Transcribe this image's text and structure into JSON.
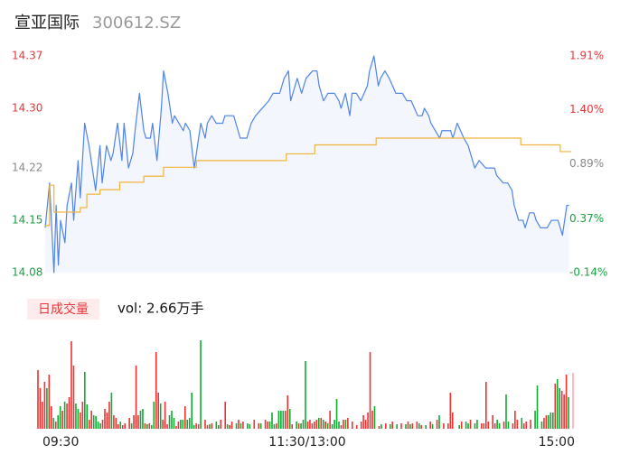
{
  "chart_data": [
    {
      "type": "line",
      "title": "宣亚国际",
      "subtitle": "300612.SZ",
      "xlim": [
        0,
        240
      ],
      "ylim": [
        14.08,
        14.37
      ],
      "yticks": [
        14.37,
        {
          "value": 14.3,
          "label": "14.30"
        },
        14.22,
        14.15,
        14.08
      ],
      "ytick_colors": [
        "#e8363b",
        "#e8363b",
        "#888888",
        "#1aa042",
        "#1aa042"
      ],
      "y2lim": [
        -0.14,
        1.91
      ],
      "y2ticks": [
        {
          "value": 1.91,
          "label": "1.91%"
        },
        {
          "value": 1.4,
          "label": "1.40%"
        },
        {
          "value": 0.89,
          "label": "0.89%"
        },
        {
          "value": 0.37,
          "label": "0.37%"
        },
        {
          "value": -0.14,
          "label": "-0.14%"
        }
      ],
      "y2tick_colors": [
        "#e8363b",
        "#e8363b",
        "#888888",
        "#1aa042",
        "#1aa042"
      ],
      "area_color": "#f3f6fc",
      "series": [
        {
          "color": "#4f84e8",
          "x": [
            0,
            2,
            4,
            5,
            6,
            7,
            9,
            10,
            12,
            13,
            15,
            16,
            18,
            20,
            21,
            23,
            25,
            26,
            28,
            30,
            31,
            33,
            35,
            36,
            38,
            40,
            41,
            43,
            45,
            46,
            48,
            49,
            51,
            53,
            54,
            56,
            58,
            59,
            61,
            63,
            64,
            66,
            68,
            69,
            71,
            73,
            74,
            76,
            78,
            81,
            82,
            86,
            87,
            89,
            92,
            94,
            96,
            99,
            102,
            104,
            107,
            109,
            111,
            112,
            114,
            115,
            117,
            119,
            122,
            124,
            125,
            127,
            129,
            132,
            134,
            135,
            137,
            139,
            140,
            142,
            144,
            147,
            148,
            150,
            152,
            153,
            155,
            157,
            160,
            163,
            165,
            167,
            170,
            172,
            173,
            175,
            176,
            180,
            181,
            185,
            186,
            188,
            191,
            193,
            195,
            196,
            198,
            201,
            205,
            206,
            209,
            211,
            213,
            214,
            216,
            218,
            219,
            221,
            223,
            224,
            226,
            229,
            231,
            233,
            234,
            236,
            238,
            239
          ],
          "values": [
            14.14,
            14.2,
            14.08,
            14.17,
            14.09,
            14.15,
            14.12,
            14.17,
            14.2,
            14.15,
            14.23,
            14.18,
            14.28,
            14.25,
            14.23,
            14.19,
            14.25,
            14.2,
            14.25,
            14.23,
            14.24,
            14.28,
            14.23,
            14.28,
            14.22,
            14.24,
            14.27,
            14.32,
            14.27,
            14.26,
            14.26,
            14.28,
            14.23,
            14.3,
            14.35,
            14.32,
            14.28,
            14.29,
            14.28,
            14.27,
            14.28,
            14.27,
            14.22,
            14.24,
            14.28,
            14.26,
            14.28,
            14.29,
            14.28,
            14.28,
            14.29,
            14.29,
            14.28,
            14.26,
            14.26,
            14.28,
            14.29,
            14.3,
            14.31,
            14.32,
            14.32,
            14.34,
            14.35,
            14.31,
            14.33,
            14.34,
            14.32,
            14.34,
            14.35,
            14.35,
            14.33,
            14.31,
            14.32,
            14.32,
            14.31,
            14.3,
            14.32,
            14.29,
            14.32,
            14.32,
            14.31,
            14.33,
            14.35,
            14.37,
            14.33,
            14.34,
            14.35,
            14.34,
            14.32,
            14.32,
            14.31,
            14.31,
            14.29,
            14.29,
            14.3,
            14.29,
            14.28,
            14.26,
            14.27,
            14.27,
            14.26,
            14.28,
            14.26,
            14.25,
            14.23,
            14.22,
            14.23,
            14.22,
            14.22,
            14.21,
            14.2,
            14.2,
            14.19,
            14.17,
            14.15,
            14.15,
            14.14,
            14.16,
            14.16,
            14.15,
            14.14,
            14.14,
            14.15,
            14.15,
            14.15,
            14.13,
            14.17,
            14.17
          ],
          "area": true
        },
        {
          "color": "#f2b33d",
          "step": true,
          "x": [
            0,
            2,
            4,
            16,
            19,
            25,
            34,
            45,
            54,
            69,
            110,
            123,
            151,
            217,
            235,
            240
          ],
          "values": [
            14.143,
            14.197,
            14.161,
            14.167,
            14.185,
            14.191,
            14.201,
            14.209,
            14.221,
            14.23,
            14.239,
            14.251,
            14.26,
            14.251,
            14.242,
            14.242
          ]
        }
      ]
    },
    {
      "type": "bar",
      "title": "日成交量",
      "annotation": "vol: 2.66万手",
      "xlim": [
        0,
        240
      ],
      "ylim": [
        0,
        100
      ],
      "xticks": [
        {
          "value": 0,
          "label": "09:30"
        },
        {
          "value": 120,
          "label": "11:30/13:00"
        },
        {
          "value": 240,
          "label": "15:00"
        }
      ],
      "x": [
        0,
        1,
        2,
        3,
        4,
        5,
        6,
        7,
        8,
        9,
        10,
        11,
        12,
        13,
        14,
        15,
        16,
        17,
        18,
        19,
        20,
        21,
        22,
        23,
        24,
        25,
        26,
        27,
        28,
        29,
        30,
        31,
        32,
        33,
        34,
        35,
        36,
        37,
        38,
        39,
        41,
        42,
        43,
        44,
        45,
        46,
        47,
        48,
        49,
        50,
        51,
        52,
        53,
        54,
        55,
        56,
        57,
        58,
        59,
        60,
        61,
        62,
        63,
        64,
        65,
        66,
        67,
        68,
        69,
        70,
        71,
        72,
        73,
        75,
        76,
        77,
        78,
        80,
        81,
        82,
        84,
        85,
        86,
        87,
        89,
        90,
        91,
        92,
        94,
        95,
        97,
        99,
        100,
        102,
        103,
        104,
        105,
        106,
        107,
        108,
        109,
        110,
        111,
        112,
        113,
        114,
        116,
        117,
        118,
        119,
        120,
        121,
        122,
        123,
        124,
        125,
        126,
        127,
        128,
        129,
        130,
        131,
        132,
        133,
        134,
        135,
        136,
        137,
        138,
        139,
        141,
        143,
        145,
        146,
        147,
        148,
        149,
        150,
        151,
        153,
        154,
        156,
        158,
        159,
        161,
        163,
        165,
        166,
        167,
        168,
        170,
        171,
        172,
        174,
        176,
        177,
        179,
        180,
        182,
        184,
        185,
        186,
        189,
        190,
        192,
        193,
        194,
        196,
        197,
        199,
        200,
        201,
        202,
        204,
        205,
        206,
        207,
        209,
        210,
        211,
        213,
        214,
        215,
        217,
        218,
        219,
        221,
        223,
        224,
        226,
        227,
        228,
        229,
        230,
        231,
        232,
        233,
        234,
        235,
        236,
        237,
        238,
        240
      ],
      "values": [
        65,
        45,
        30,
        52,
        45,
        60,
        25,
        12,
        8,
        15,
        25,
        20,
        30,
        28,
        35,
        97,
        70,
        28,
        22,
        18,
        30,
        63,
        27,
        10,
        20,
        15,
        14,
        8,
        6,
        10,
        22,
        18,
        30,
        40,
        15,
        12,
        5,
        8,
        4,
        6,
        12,
        6,
        15,
        70,
        15,
        20,
        22,
        6,
        5,
        6,
        4,
        30,
        85,
        40,
        28,
        10,
        30,
        5,
        15,
        20,
        12,
        3,
        8,
        10,
        10,
        25,
        10,
        12,
        40,
        4,
        6,
        5,
        98,
        10,
        4,
        5,
        6,
        8,
        4,
        10,
        30,
        5,
        4,
        8,
        6,
        10,
        6,
        8,
        6,
        5,
        10,
        6,
        6,
        10,
        8,
        8,
        18,
        5,
        6,
        20,
        20,
        20,
        20,
        37,
        22,
        5,
        8,
        6,
        6,
        10,
        75,
        8,
        10,
        6,
        8,
        10,
        12,
        12,
        10,
        8,
        6,
        20,
        5,
        10,
        33,
        8,
        4,
        10,
        10,
        12,
        8,
        4,
        8,
        15,
        10,
        18,
        85,
        20,
        25,
        3,
        5,
        6,
        5,
        8,
        5,
        6,
        5,
        8,
        5,
        6,
        8,
        6,
        4,
        4,
        8,
        5,
        10,
        15,
        6,
        6,
        40,
        18,
        4,
        8,
        8,
        6,
        10,
        6,
        10,
        6,
        6,
        52,
        8,
        15,
        6,
        10,
        6,
        8,
        38,
        8,
        6,
        20,
        10,
        12,
        6,
        8,
        10,
        20,
        48,
        8,
        12,
        15,
        15,
        18,
        18,
        50,
        55,
        45,
        42,
        38,
        60,
        35,
        62
      ],
      "colors": [
        "#e33",
        "#e33",
        "#e33",
        "#e33",
        "#1a3",
        "#e33",
        "#e33",
        "#1a3",
        "#e33",
        "#1a3",
        "#1a3",
        "#e33",
        "#1a3",
        "#e33",
        "#e33",
        "#e33",
        "#e33",
        "#1a3",
        "#1a3",
        "#e33",
        "#e33",
        "#1a3",
        "#1a3",
        "#e33",
        "#e33",
        "#1a3",
        "#1a3",
        "#1a3",
        "#1a3",
        "#e33",
        "#e33",
        "#e33",
        "#e33",
        "#1a3",
        "#e33",
        "#e33",
        "#e33",
        "#1a3",
        "#e33",
        "#e33",
        "#e33",
        "#1a3",
        "#e33",
        "#e33",
        "#e33",
        "#1a3",
        "#1a3",
        "#e33",
        "#1a3",
        "#e33",
        "#1a3",
        "#1a3",
        "#e33",
        "#e33",
        "#1a3",
        "#e33",
        "#e33",
        "#e33",
        "#1a3",
        "#1a3",
        "#1a3",
        "#e33",
        "#e33",
        "#1a3",
        "#1a3",
        "#e33",
        "#1a3",
        "#1a3",
        "#1a3",
        "#1a3",
        "#e33",
        "#e33",
        "#1a3",
        "#e33",
        "#e33",
        "#1a3",
        "#e33",
        "#1a3",
        "#1a3",
        "#e33",
        "#e33",
        "#1a3",
        "#e33",
        "#e33",
        "#1a3",
        "#e33",
        "#1a3",
        "#e33",
        "#1a3",
        "#1a3",
        "#e33",
        "#e33",
        "#1a3",
        "#e33",
        "#e33",
        "#1a3",
        "#1a3",
        "#1a3",
        "#e33",
        "#1a3",
        "#1a3",
        "#1a3",
        "#e33",
        "#e33",
        "#1a3",
        "#e33",
        "#1a3",
        "#e33",
        "#1a3",
        "#1a3",
        "#1a3",
        "#e33",
        "#e33",
        "#e33",
        "#e33",
        "#e33",
        "#1a3",
        "#e33",
        "#1a3",
        "#e33",
        "#1a3",
        "#e33",
        "#1a3",
        "#1a3",
        "#1a3",
        "#1a3",
        "#e33",
        "#e33",
        "#1a3",
        "#e33",
        "#e33",
        "#e33",
        "#e33",
        "#e33",
        "#e33",
        "#e33",
        "#e33",
        "#e33",
        "#1a3",
        "#e33",
        "#1a3",
        "#e33",
        "#1a3",
        "#e33",
        "#1a3",
        "#e33",
        "#1a3",
        "#e33",
        "#1a3",
        "#e33",
        "#e33",
        "#1a3",
        "#e33",
        "#1a3",
        "#e33",
        "#1a3",
        "#e33",
        "#1a3",
        "#e33",
        "#e33",
        "#e33",
        "#e33",
        "#1a3",
        "#e33",
        "#1a3",
        "#1a3",
        "#e33",
        "#1a3",
        "#1a3",
        "#e33",
        "#e33",
        "#e33",
        "#e33",
        "#e33",
        "#e33",
        "#1a3",
        "#1a3",
        "#e33",
        "#1a3",
        "#1a3",
        "#e33",
        "#e33",
        "#e33",
        "#1a3",
        "#e33",
        "#e33",
        "#e33",
        "#1a3",
        "#1a3",
        "#1a3",
        "#e33",
        "#e33",
        "#1a3",
        "#1a3",
        "#1a3",
        "#e33",
        "#1a3",
        "#1a3",
        "#e33",
        "#e33",
        "#e33",
        "#1a3",
        "#fab"
      ]
    }
  ]
}
